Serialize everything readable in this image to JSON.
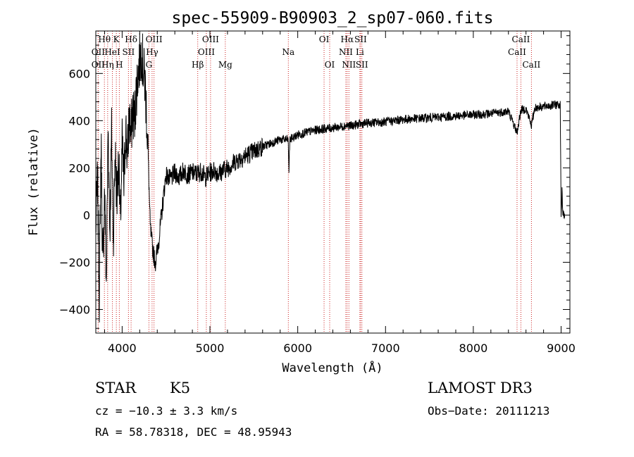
{
  "chart_data": {
    "type": "line",
    "title": "spec-55909-B90903_2_sp07-060.fits",
    "xlabel": "Wavelength (Å)",
    "ylabel": "Flux (relative)",
    "xlim": [
      3700,
      9100
    ],
    "ylim": [
      -500,
      780
    ],
    "xticks": [
      4000,
      5000,
      6000,
      7000,
      8000,
      9000
    ],
    "yticks": [
      -400,
      -200,
      0,
      200,
      400,
      600
    ],
    "series": [
      {
        "name": "flux",
        "x": [
          3700,
          3720,
          3740,
          3760,
          3780,
          3800,
          3820,
          3840,
          3860,
          3880,
          3900,
          3920,
          3940,
          3960,
          3980,
          4000,
          4020,
          4040,
          4060,
          4080,
          4100,
          4120,
          4140,
          4160,
          4180,
          4200,
          4220,
          4240,
          4260,
          4280,
          4300,
          4320,
          4340,
          4360,
          4380,
          4400,
          4420,
          4440,
          4460,
          4480,
          4500,
          4550,
          4600,
          4650,
          4700,
          4750,
          4800,
          4850,
          4900,
          4950,
          5000,
          5050,
          5100,
          5150,
          5200,
          5300,
          5400,
          5500,
          5600,
          5700,
          5800,
          5890,
          5900,
          5910,
          6000,
          6100,
          6200,
          6300,
          6400,
          6500,
          6560,
          6600,
          6700,
          6800,
          7000,
          7200,
          7400,
          7600,
          7800,
          8000,
          8200,
          8400,
          8498,
          8542,
          8600,
          8662,
          8700,
          8800,
          8900,
          8990,
          9000,
          9010,
          9020,
          9040
        ],
        "y": [
          -50,
          150,
          -350,
          320,
          -250,
          120,
          -300,
          380,
          -60,
          350,
          -100,
          280,
          60,
          250,
          -50,
          300,
          120,
          380,
          240,
          420,
          330,
          450,
          400,
          520,
          600,
          650,
          700,
          620,
          560,
          420,
          200,
          -50,
          -120,
          -170,
          -200,
          -150,
          -100,
          -30,
          40,
          110,
          170,
          150,
          180,
          160,
          190,
          170,
          180,
          175,
          185,
          160,
          180,
          190,
          175,
          190,
          200,
          230,
          250,
          270,
          290,
          305,
          320,
          320,
          190,
          320,
          340,
          350,
          360,
          365,
          370,
          375,
          380,
          378,
          385,
          390,
          395,
          405,
          410,
          415,
          420,
          425,
          430,
          440,
          350,
          445,
          450,
          380,
          455,
          460,
          465,
          470,
          0,
          100,
          10,
          0
        ],
        "noise": 35
      }
    ],
    "spectral_lines": [
      {
        "label": "Hθ",
        "wavelength": 3798,
        "row": 1
      },
      {
        "label": "OII",
        "wavelength": 3727,
        "row": 2
      },
      {
        "label": "OII",
        "wavelength": 3727,
        "row": 3
      },
      {
        "label": "Hη",
        "wavelength": 3835,
        "row": 3
      },
      {
        "label": "HeI",
        "wavelength": 3889,
        "row": 2
      },
      {
        "label": "K",
        "wavelength": 3934,
        "row": 1
      },
      {
        "label": "H",
        "wavelength": 3968,
        "row": 3
      },
      {
        "label": "SII",
        "wavelength": 4072,
        "row": 2
      },
      {
        "label": "Hδ",
        "wavelength": 4102,
        "row": 1
      },
      {
        "label": "G",
        "wavelength": 4305,
        "row": 3
      },
      {
        "label": "OIII",
        "wavelength": 4363,
        "row": 1
      },
      {
        "label": "Hγ",
        "wavelength": 4341,
        "row": 2
      },
      {
        "label": "Hβ",
        "wavelength": 4861,
        "row": 3
      },
      {
        "label": "OIII",
        "wavelength": 5007,
        "row": 1
      },
      {
        "label": "OIII",
        "wavelength": 4959,
        "row": 2
      },
      {
        "label": "Mg",
        "wavelength": 5175,
        "row": 3
      },
      {
        "label": "Na",
        "wavelength": 5893,
        "row": 2
      },
      {
        "label": "OI",
        "wavelength": 6300,
        "row": 1
      },
      {
        "label": "OI",
        "wavelength": 6364,
        "row": 3
      },
      {
        "label": "Hα",
        "wavelength": 6563,
        "row": 1
      },
      {
        "label": "NII",
        "wavelength": 6548,
        "row": 2
      },
      {
        "label": "NII",
        "wavelength": 6583,
        "row": 3
      },
      {
        "label": "SII",
        "wavelength": 6716,
        "row": 1
      },
      {
        "label": "Li",
        "wavelength": 6708,
        "row": 2
      },
      {
        "label": "SII",
        "wavelength": 6731,
        "row": 3
      },
      {
        "label": "CaII",
        "wavelength": 8542,
        "row": 1
      },
      {
        "label": "CaII",
        "wavelength": 8498,
        "row": 2
      },
      {
        "label": "CaII",
        "wavelength": 8662,
        "row": 3
      }
    ]
  },
  "info": {
    "class": "STAR",
    "subclass": "K5",
    "survey": "LAMOST DR3",
    "cz": "cz = −10.3 ± 3.3 km/s",
    "obs_date": "Obs−Date: 20111213",
    "radec": "RA =  58.78318, DEC =  48.95943"
  },
  "colors": {
    "line_marker": "#cc2222",
    "spectrum": "#000000"
  }
}
